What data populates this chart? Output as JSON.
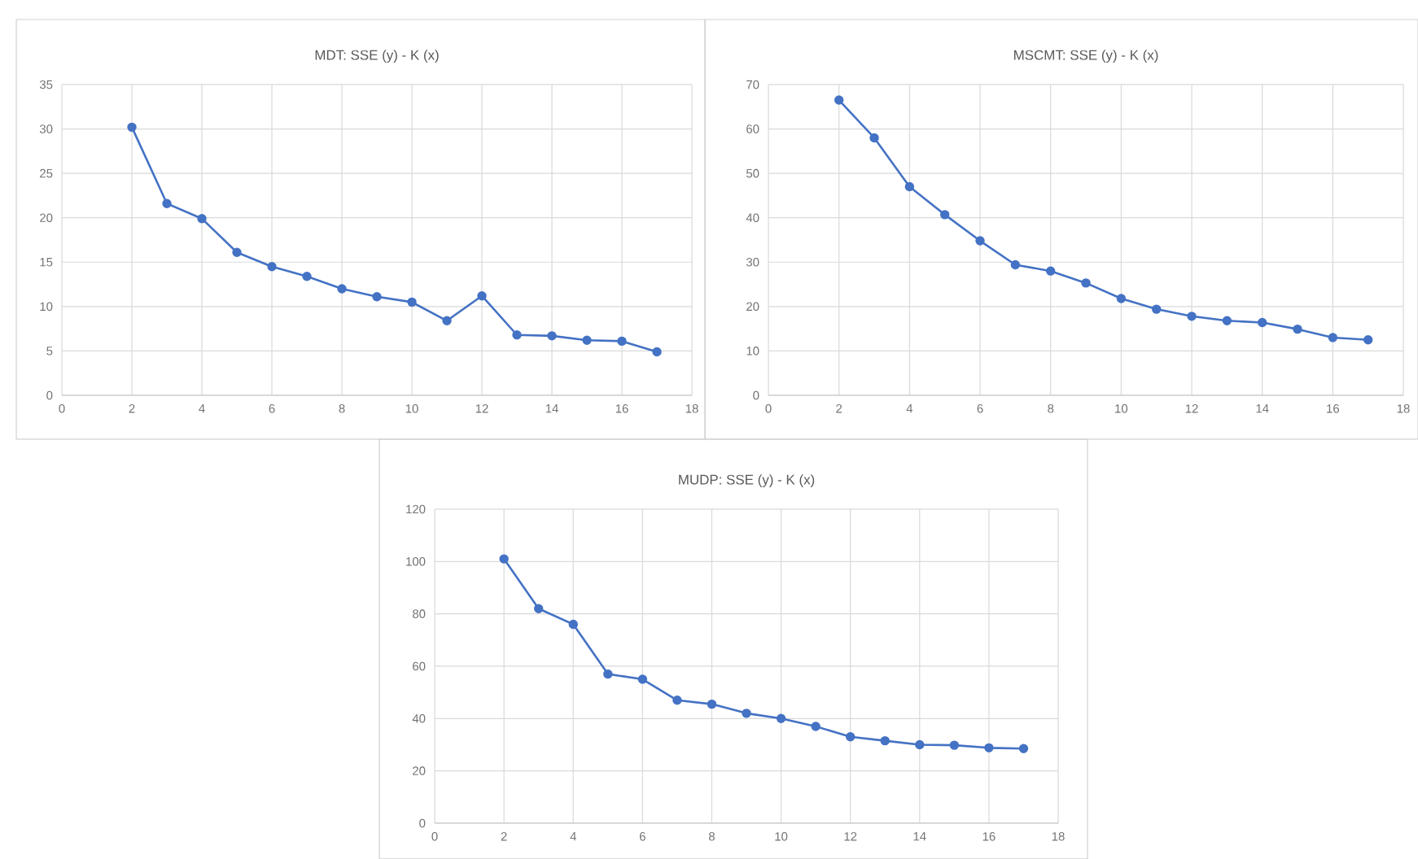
{
  "chart_data": [
    {
      "type": "line",
      "title": "MDT: SSE (y) - K (x)",
      "x": [
        2,
        3,
        4,
        5,
        6,
        7,
        8,
        9,
        10,
        11,
        12,
        13,
        14,
        15,
        16,
        17
      ],
      "values": [
        30.2,
        21.6,
        19.9,
        16.1,
        14.5,
        13.4,
        12.0,
        11.1,
        10.5,
        8.4,
        11.2,
        6.8,
        6.7,
        6.2,
        6.1,
        4.9
      ],
      "color": "#4472c4",
      "marker": "circle",
      "grid": true,
      "xlim": [
        0,
        18
      ],
      "ylim": [
        0,
        35
      ],
      "xticks": [
        0,
        2,
        4,
        6,
        8,
        10,
        12,
        14,
        16,
        18
      ],
      "yticks": [
        0,
        5,
        10,
        15,
        20,
        25,
        30,
        35
      ]
    },
    {
      "type": "line",
      "title": "MSCMT: SSE (y) - K (x)",
      "x": [
        2,
        3,
        4,
        5,
        6,
        7,
        8,
        9,
        10,
        11,
        12,
        13,
        14,
        15,
        16,
        17
      ],
      "values": [
        66.5,
        58,
        47,
        40.7,
        34.8,
        29.4,
        28,
        25.3,
        21.8,
        19.4,
        17.8,
        16.8,
        16.4,
        14.9,
        13,
        12.5
      ],
      "color": "#4472c4",
      "marker": "circle",
      "grid": true,
      "xlim": [
        0,
        18
      ],
      "ylim": [
        0,
        70
      ],
      "xticks": [
        0,
        2,
        4,
        6,
        8,
        10,
        12,
        14,
        16,
        18
      ],
      "yticks": [
        0,
        10,
        20,
        30,
        40,
        50,
        60,
        70
      ]
    },
    {
      "type": "line",
      "title": "MUDP: SSE (y) - K (x)",
      "x": [
        2,
        3,
        4,
        5,
        6,
        7,
        8,
        9,
        10,
        11,
        12,
        13,
        14,
        15,
        16,
        17
      ],
      "values": [
        101,
        82,
        76,
        57,
        55,
        47,
        45.5,
        42,
        40,
        37,
        33,
        31.5,
        30,
        29.8,
        28.8,
        28.5
      ],
      "color": "#4472c4",
      "marker": "circle",
      "grid": true,
      "xlim": [
        0,
        18
      ],
      "ylim": [
        0,
        120
      ],
      "xticks": [
        0,
        2,
        4,
        6,
        8,
        10,
        12,
        14,
        16,
        18
      ],
      "yticks": [
        0,
        20,
        40,
        60,
        80,
        100,
        120
      ]
    }
  ]
}
